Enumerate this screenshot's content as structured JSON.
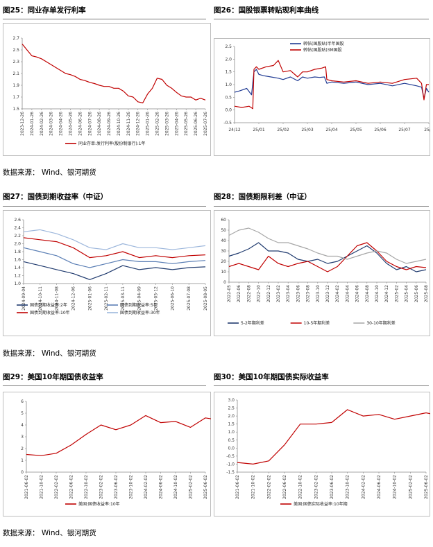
{
  "sections": [
    {
      "figures": [
        {
          "title": "图25：同业存单发行利率"
        },
        {
          "title": "图26：国股银票转贴现利率曲线"
        }
      ],
      "source": "数据来源：  Wind、银河期货"
    },
    {
      "figures": [
        {
          "title": "图27：国债到期收益率（中证）"
        },
        {
          "title": "图28：国债期限利差（中证）"
        }
      ],
      "source": "数据来源：  Wind、银河期货"
    },
    {
      "figures": [
        {
          "title": "图29：美国10年期国债收益率"
        },
        {
          "title": "图30：美国10年期国债实际收益率"
        }
      ],
      "source": "数据来源：  Wind、银河期货"
    }
  ],
  "chart_data": [
    {
      "id": "fig25",
      "type": "line",
      "title": "图25：同业存单发行利率",
      "ylim": [
        1.5,
        2.7
      ],
      "yticks": [
        1.5,
        1.7,
        1.9,
        2.1,
        2.3,
        2.5,
        2.7
      ],
      "xticks": [
        "2023-12-26",
        "2024-01-26",
        "2024-02-26",
        "2024-03-26",
        "2024-04-26",
        "2024-05-26",
        "2024-06-26",
        "2024-07-26",
        "2024-08-26",
        "2024-09-26",
        "2024-10-26",
        "2024-11-26",
        "2024-12-26",
        "2025-01-26",
        "2025-02-26",
        "2025-03-26",
        "2025-04-26",
        "2025-05-26",
        "2025-06-26",
        "2025-07-26"
      ],
      "series": [
        {
          "name": "同业存单:发行利率(股份制银行):1年",
          "color": "#c00000",
          "x": [
            0,
            0.5,
            1,
            1.5,
            2,
            2.5,
            3,
            3.5,
            4,
            4.5,
            5,
            5.5,
            6,
            6.5,
            7,
            7.5,
            8,
            8.5,
            9,
            9.5,
            10,
            10.5,
            11,
            11.5,
            12,
            12.5,
            13,
            13.5,
            14,
            14.5,
            15,
            15.5,
            16,
            16.5,
            17,
            17.5,
            18,
            18.5,
            19
          ],
          "values": [
            2.6,
            2.5,
            2.4,
            2.38,
            2.35,
            2.3,
            2.25,
            2.2,
            2.15,
            2.1,
            2.08,
            2.05,
            2.0,
            1.98,
            1.95,
            1.93,
            1.9,
            1.88,
            1.88,
            1.85,
            1.85,
            1.8,
            1.72,
            1.7,
            1.62,
            1.6,
            1.75,
            1.85,
            2.02,
            2.0,
            1.9,
            1.85,
            1.78,
            1.72,
            1.7,
            1.7,
            1.65,
            1.68,
            1.65
          ]
        }
      ]
    },
    {
      "id": "fig26",
      "type": "line",
      "title": "图26：国股银票转贴现利率曲线",
      "ylim": [
        -0.5,
        2.5
      ],
      "yticks": [
        -0.5,
        0.0,
        0.5,
        1.0,
        1.5,
        2.0,
        2.5
      ],
      "xticks": [
        "24/12",
        "25/01",
        "25/02",
        "25/03",
        "25/04",
        "25/05",
        "25/06",
        "25/07",
        "25/0"
      ],
      "legend_position": "top",
      "series": [
        {
          "name": "转帖(国股贴)半年国股",
          "color": "#1f3a93",
          "x": [
            0,
            0.2,
            0.5,
            0.7,
            0.8,
            0.9,
            1.0,
            1.2,
            1.5,
            1.8,
            2.0,
            2.3,
            2.6,
            2.8,
            3.0,
            3.3,
            3.5,
            3.7,
            3.8,
            4.0,
            4.5,
            5.0,
            5.5,
            6.0,
            6.5,
            7.0,
            7.5,
            7.7,
            7.8,
            7.9,
            8.0
          ],
          "values": [
            0.7,
            0.75,
            0.85,
            0.6,
            1.5,
            1.6,
            1.4,
            1.35,
            1.3,
            1.25,
            1.2,
            1.3,
            1.15,
            1.3,
            1.25,
            1.3,
            1.28,
            1.3,
            1.05,
            1.1,
            1.05,
            1.1,
            1.0,
            1.05,
            0.95,
            1.05,
            0.95,
            0.9,
            0.45,
            0.85,
            0.7
          ]
        },
        {
          "name": "转帖(国股贴)3M国股",
          "color": "#c00000",
          "x": [
            0,
            0.3,
            0.6,
            0.75,
            0.8,
            0.9,
            1.0,
            1.3,
            1.6,
            1.8,
            2.0,
            2.3,
            2.6,
            2.8,
            3.0,
            3.3,
            3.6,
            3.75,
            3.8,
            4.0,
            4.5,
            5.0,
            5.5,
            6.0,
            6.5,
            7.0,
            7.5,
            7.7,
            7.8,
            7.9,
            8.0
          ],
          "values": [
            0.15,
            0.1,
            0.15,
            0.05,
            1.6,
            1.7,
            1.6,
            1.7,
            1.75,
            1.95,
            1.5,
            1.55,
            1.3,
            1.5,
            1.5,
            1.6,
            1.65,
            1.7,
            1.2,
            1.15,
            1.1,
            1.15,
            1.05,
            1.1,
            1.05,
            1.2,
            1.25,
            1.05,
            0.4,
            1.0,
            1.0
          ]
        }
      ]
    },
    {
      "id": "fig27",
      "type": "line",
      "title": "图27：国债到期收益率（中证）",
      "ylim": [
        1.0,
        2.6
      ],
      "yticks": [
        1.0,
        1.2,
        1.4,
        1.6,
        1.8,
        2.0,
        2.2,
        2.4,
        2.6
      ],
      "xticks": [
        "2024-09-04",
        "2024-10-11",
        "2024-11-08",
        "2024-12-06",
        "2025-01-06",
        "2025-02-11",
        "2025-03-11",
        "2025-04-09",
        "2025-05-12",
        "2025-06-10",
        "2025-07-08",
        "2025-08-05"
      ],
      "legend_position": "bottom",
      "series": [
        {
          "name": "国债到期收益率:2年",
          "color": "#1f3a6e",
          "x": [
            0,
            1,
            2,
            3,
            4,
            5,
            6,
            7,
            8,
            9,
            10,
            11
          ],
          "values": [
            1.55,
            1.45,
            1.35,
            1.25,
            1.1,
            1.25,
            1.45,
            1.35,
            1.4,
            1.35,
            1.4,
            1.42
          ]
        },
        {
          "name": "国债到期收益率:5年",
          "color": "#5b7fb5",
          "x": [
            0,
            1,
            2,
            3,
            4,
            5,
            6,
            7,
            8,
            9,
            10,
            11
          ],
          "values": [
            1.9,
            1.8,
            1.7,
            1.5,
            1.4,
            1.5,
            1.6,
            1.55,
            1.55,
            1.5,
            1.55,
            1.58
          ]
        },
        {
          "name": "国债到期收益率:10年",
          "color": "#c00000",
          "x": [
            0,
            1,
            2,
            3,
            4,
            5,
            6,
            7,
            8,
            9,
            10,
            11
          ],
          "values": [
            2.15,
            2.1,
            2.05,
            1.9,
            1.65,
            1.7,
            1.8,
            1.65,
            1.7,
            1.65,
            1.7,
            1.72
          ]
        },
        {
          "name": "国债到期收益率:30年",
          "color": "#9db7dc",
          "x": [
            0,
            1,
            2,
            3,
            4,
            5,
            6,
            7,
            8,
            9,
            10,
            11
          ],
          "values": [
            2.3,
            2.35,
            2.25,
            2.1,
            1.9,
            1.85,
            2.0,
            1.9,
            1.9,
            1.85,
            1.9,
            1.95
          ]
        }
      ]
    },
    {
      "id": "fig28",
      "type": "line",
      "title": "图28：国债期限利差（中证）",
      "ylim": [
        0,
        60
      ],
      "yticks": [
        0,
        10,
        20,
        30,
        40,
        50,
        60
      ],
      "xticks": [
        "2022-05",
        "2022-06",
        "2022-08",
        "2022-10",
        "2022-12",
        "2023-02",
        "2023-04",
        "2023-06",
        "2023-08",
        "2023-10",
        "2023-12",
        "2024-02",
        "2024-04",
        "2024-06",
        "2024-08",
        "2024-10",
        "2024-12",
        "2025-02",
        "2025-04",
        "2025-06",
        "2025-08"
      ],
      "legend_position": "bottom",
      "series": [
        {
          "name": "5-2年期利差",
          "color": "#1f3a6e",
          "x": [
            0,
            1,
            2,
            3,
            4,
            5,
            6,
            7,
            8,
            9,
            10,
            11,
            12,
            13,
            14,
            15,
            16,
            17,
            18,
            19,
            20
          ],
          "values": [
            25,
            28,
            32,
            38,
            30,
            30,
            28,
            22,
            20,
            22,
            18,
            20,
            25,
            30,
            35,
            28,
            18,
            12,
            15,
            10,
            12
          ]
        },
        {
          "name": "10-5年期利差",
          "color": "#c00000",
          "x": [
            0,
            1,
            2,
            3,
            4,
            5,
            6,
            7,
            8,
            9,
            10,
            11,
            12,
            13,
            14,
            15,
            16,
            17,
            18,
            19,
            20
          ],
          "values": [
            15,
            18,
            15,
            12,
            25,
            18,
            15,
            18,
            20,
            15,
            10,
            15,
            25,
            35,
            38,
            30,
            20,
            15,
            12,
            15,
            14
          ]
        },
        {
          "name": "30-10年期利差",
          "color": "#a6a6a6",
          "x": [
            0,
            1,
            2,
            3,
            4,
            5,
            6,
            7,
            8,
            9,
            10,
            11,
            12,
            13,
            14,
            15,
            16,
            17,
            18,
            19,
            20
          ],
          "values": [
            45,
            50,
            52,
            48,
            42,
            38,
            38,
            35,
            32,
            28,
            25,
            25,
            22,
            25,
            28,
            30,
            28,
            22,
            18,
            20,
            22
          ]
        }
      ]
    },
    {
      "id": "fig29",
      "type": "line",
      "title": "图29：美国10年期国债收益率",
      "ylim": [
        0.0,
        6.0
      ],
      "yticks": [
        0.0,
        1.0,
        2.0,
        3.0,
        4.0,
        5.0,
        6.0
      ],
      "xticks": [
        "2021-06-02",
        "2021-10-02",
        "2022-02-02",
        "2022-06-02",
        "2022-10-02",
        "2023-02-02",
        "2023-06-02",
        "2023-10-02",
        "2024-02-02",
        "2024-06-02",
        "2024-10-02",
        "2025-02-02",
        "2025-06-02"
      ],
      "series": [
        {
          "name": "美国:国债收益率:10年",
          "color": "#c00000",
          "x": [
            0,
            1,
            2,
            3,
            4,
            5,
            6,
            7,
            8,
            9,
            10,
            11,
            12,
            13
          ],
          "values": [
            1.5,
            1.4,
            1.6,
            2.3,
            3.2,
            4.0,
            3.6,
            4.0,
            4.8,
            4.2,
            4.3,
            3.8,
            4.6,
            4.4
          ]
        }
      ]
    },
    {
      "id": "fig30",
      "type": "line",
      "title": "图30：美国10年期国债实际收益率",
      "ylim": [
        -1.5,
        3.0
      ],
      "yticks": [
        -1.5,
        -1.0,
        -0.5,
        0.0,
        0.5,
        1.0,
        1.5,
        2.0,
        2.5,
        3.0
      ],
      "xticks": [
        "2021-06-02",
        "2021-10-02",
        "2022-02-02",
        "2022-06-02",
        "2022-10-02",
        "2023-02-02",
        "2023-06-02",
        "2023-10-02",
        "2024-02-02",
        "2024-06-02",
        "2024-10-02",
        "2025-02-02",
        "2025-06-02"
      ],
      "series": [
        {
          "name": "美国:国债实际收益率:10年期",
          "color": "#c00000",
          "x": [
            0,
            1,
            2,
            3,
            4,
            5,
            6,
            7,
            8,
            9,
            10,
            11,
            12,
            13
          ],
          "values": [
            -0.9,
            -1.0,
            -0.8,
            0.2,
            1.5,
            1.5,
            1.6,
            2.4,
            2.0,
            2.1,
            1.8,
            2.0,
            2.2,
            2.0
          ]
        }
      ]
    }
  ]
}
